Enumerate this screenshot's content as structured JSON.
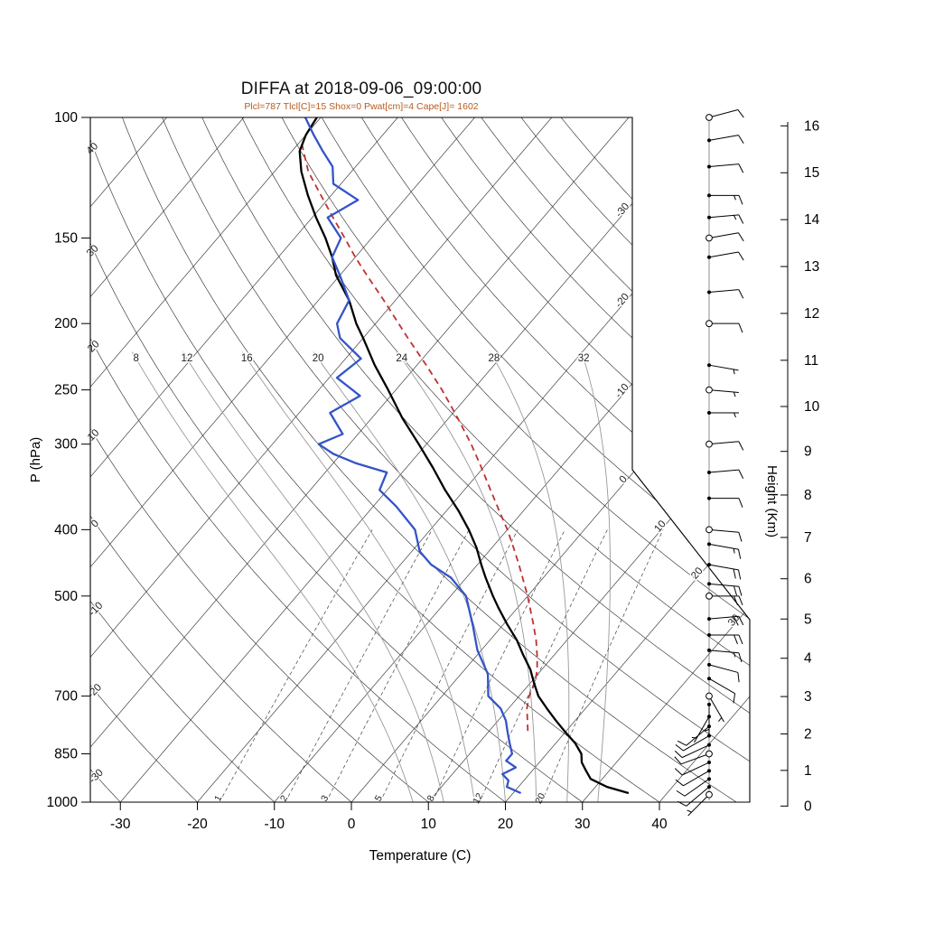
{
  "title": "DIFFA at 2018-09-06_09:00:00",
  "subtitle": "Plcl=787 Tlcl[C]=15 Shox=0 Pwat[cm]=4 Cape[J]= 1602",
  "colors": {
    "temperature": "#000000",
    "dewpoint": "#3354c8",
    "parcel": "#c03030",
    "subtitle": "#b85a1e",
    "background_line": "#333333",
    "moist_adiabat": "#999999"
  },
  "axes": {
    "pressure": {
      "label": "P (hPa)",
      "ticks": [
        100,
        150,
        200,
        250,
        300,
        400,
        500,
        700,
        850,
        1000
      ]
    },
    "temperature": {
      "label": "Temperature (C)",
      "ticks": [
        -30,
        -20,
        -10,
        0,
        10,
        20,
        30,
        40
      ]
    },
    "height": {
      "label": "Height (Km)",
      "ticks": [
        0,
        1,
        2,
        3,
        4,
        5,
        6,
        7,
        8,
        9,
        10,
        11,
        12,
        13,
        14,
        15,
        16
      ]
    }
  },
  "background": {
    "isotherms": {
      "values": [
        -120,
        -110,
        -100,
        -90,
        -80,
        -70,
        -60,
        -50,
        -40,
        -30,
        -20,
        -10,
        0,
        10,
        20,
        30,
        40
      ],
      "edge_labels": [
        -30,
        -20,
        -10,
        0,
        10,
        20,
        30
      ]
    },
    "dry_adiabats": {
      "values": [
        -30,
        -20,
        -10,
        0,
        10,
        20,
        30,
        40,
        50,
        60,
        70,
        80,
        90,
        100,
        110,
        120,
        130,
        140,
        150,
        160
      ]
    },
    "moist_adiabats": {
      "values": [
        8,
        12,
        16,
        20,
        24,
        28,
        32
      ]
    },
    "mixing_ratio": {
      "values": [
        1,
        2,
        3,
        5,
        8,
        12,
        20
      ]
    }
  },
  "chart_data": {
    "type": "skewt_log_p",
    "pressure_range_hpa": [
      100,
      1000
    ],
    "temperature_axis_range_c": [
      -30,
      40
    ],
    "parameters": {
      "plcl_hpa": 787,
      "tlcl_c": 15,
      "showalter": 0,
      "pwat_cm": 4,
      "cape_j": 1602
    },
    "temperature_profile": [
      [
        970,
        35
      ],
      [
        950,
        31.5
      ],
      [
        925,
        28.5
      ],
      [
        900,
        27
      ],
      [
        875,
        25.5
      ],
      [
        850,
        24.5
      ],
      [
        820,
        22.5
      ],
      [
        790,
        20
      ],
      [
        760,
        17.5
      ],
      [
        730,
        15
      ],
      [
        700,
        12.5
      ],
      [
        670,
        10.5
      ],
      [
        640,
        8.5
      ],
      [
        610,
        6
      ],
      [
        580,
        3.5
      ],
      [
        550,
        0.5
      ],
      [
        520,
        -2.5
      ],
      [
        500,
        -4.5
      ],
      [
        470,
        -7.5
      ],
      [
        450,
        -9.5
      ],
      [
        425,
        -12
      ],
      [
        400,
        -15
      ],
      [
        375,
        -18.5
      ],
      [
        350,
        -22.5
      ],
      [
        325,
        -26.5
      ],
      [
        300,
        -31
      ],
      [
        275,
        -36
      ],
      [
        250,
        -41
      ],
      [
        230,
        -45.5
      ],
      [
        210,
        -50
      ],
      [
        200,
        -52.5
      ],
      [
        185,
        -56
      ],
      [
        170,
        -60.5
      ],
      [
        160,
        -63
      ],
      [
        150,
        -66
      ],
      [
        140,
        -69.5
      ],
      [
        130,
        -73
      ],
      [
        120,
        -76.5
      ],
      [
        112,
        -79
      ],
      [
        106,
        -80
      ],
      [
        100,
        -80.5
      ]
    ],
    "dewpoint_profile": [
      [
        970,
        21
      ],
      [
        950,
        18.5
      ],
      [
        930,
        18
      ],
      [
        910,
        16.5
      ],
      [
        890,
        17.5
      ],
      [
        870,
        15.5
      ],
      [
        850,
        15.5
      ],
      [
        820,
        14
      ],
      [
        790,
        12.5
      ],
      [
        760,
        11
      ],
      [
        730,
        9
      ],
      [
        700,
        6
      ],
      [
        650,
        3.5
      ],
      [
        600,
        -0.5
      ],
      [
        550,
        -4
      ],
      [
        500,
        -8
      ],
      [
        470,
        -12
      ],
      [
        450,
        -16
      ],
      [
        430,
        -19
      ],
      [
        400,
        -22
      ],
      [
        370,
        -27
      ],
      [
        350,
        -31
      ],
      [
        330,
        -32
      ],
      [
        320,
        -37
      ],
      [
        310,
        -41
      ],
      [
        300,
        -44
      ],
      [
        290,
        -42
      ],
      [
        270,
        -46
      ],
      [
        255,
        -44
      ],
      [
        240,
        -49
      ],
      [
        225,
        -48
      ],
      [
        210,
        -53
      ],
      [
        200,
        -55
      ],
      [
        185,
        -56
      ],
      [
        170,
        -60
      ],
      [
        160,
        -63
      ],
      [
        150,
        -64
      ],
      [
        140,
        -68
      ],
      [
        132,
        -66
      ],
      [
        125,
        -71
      ],
      [
        118,
        -73
      ],
      [
        112,
        -76
      ],
      [
        106,
        -79
      ],
      [
        100,
        -82
      ]
    ],
    "parcel_profile": [
      [
        787,
        15
      ],
      [
        760,
        13.8
      ],
      [
        730,
        12.4
      ],
      [
        700,
        11.3
      ],
      [
        670,
        10.6
      ],
      [
        640,
        9.4
      ],
      [
        610,
        7.8
      ],
      [
        580,
        6
      ],
      [
        550,
        3.9
      ],
      [
        520,
        1.6
      ],
      [
        500,
        0
      ],
      [
        470,
        -2.7
      ],
      [
        450,
        -4.6
      ],
      [
        425,
        -7.2
      ],
      [
        400,
        -10
      ],
      [
        375,
        -13.2
      ],
      [
        350,
        -16.6
      ],
      [
        325,
        -20.2
      ],
      [
        300,
        -24.2
      ],
      [
        275,
        -28.8
      ],
      [
        250,
        -34
      ],
      [
        230,
        -38.8
      ],
      [
        210,
        -44.2
      ],
      [
        200,
        -47
      ],
      [
        185,
        -51.5
      ],
      [
        170,
        -56.5
      ],
      [
        160,
        -60
      ],
      [
        150,
        -63.5
      ],
      [
        140,
        -67.3
      ],
      [
        130,
        -71.3
      ],
      [
        120,
        -75.6
      ],
      [
        112,
        -78.5
      ],
      [
        108,
        -80
      ]
    ],
    "wind_barbs_kt": [
      [
        975,
        225,
        5,
        1
      ],
      [
        950,
        230,
        8,
        0
      ],
      [
        925,
        235,
        10,
        0
      ],
      [
        900,
        240,
        10,
        0
      ],
      [
        875,
        245,
        12,
        0
      ],
      [
        850,
        250,
        10,
        1
      ],
      [
        825,
        245,
        10,
        0
      ],
      [
        800,
        240,
        8,
        0
      ],
      [
        775,
        230,
        8,
        0
      ],
      [
        750,
        210,
        5,
        0
      ],
      [
        720,
        180,
        5,
        0
      ],
      [
        700,
        150,
        5,
        1
      ],
      [
        660,
        120,
        8,
        0
      ],
      [
        630,
        105,
        10,
        0
      ],
      [
        600,
        95,
        15,
        0
      ],
      [
        570,
        90,
        18,
        0
      ],
      [
        540,
        85,
        20,
        0
      ],
      [
        500,
        90,
        22,
        1
      ],
      [
        480,
        95,
        20,
        0
      ],
      [
        450,
        100,
        18,
        0
      ],
      [
        420,
        100,
        15,
        0
      ],
      [
        400,
        95,
        12,
        1
      ],
      [
        360,
        90,
        10,
        0
      ],
      [
        330,
        85,
        8,
        0
      ],
      [
        300,
        85,
        8,
        1
      ],
      [
        270,
        90,
        6,
        0
      ],
      [
        250,
        95,
        5,
        1
      ],
      [
        230,
        100,
        5,
        0
      ],
      [
        200,
        90,
        8,
        1
      ],
      [
        180,
        85,
        10,
        0
      ],
      [
        160,
        80,
        12,
        0
      ],
      [
        150,
        80,
        12,
        1
      ],
      [
        140,
        85,
        15,
        0
      ],
      [
        130,
        90,
        15,
        0
      ],
      [
        118,
        85,
        12,
        0
      ],
      [
        108,
        80,
        10,
        0
      ],
      [
        100,
        75,
        10,
        1
      ]
    ]
  }
}
